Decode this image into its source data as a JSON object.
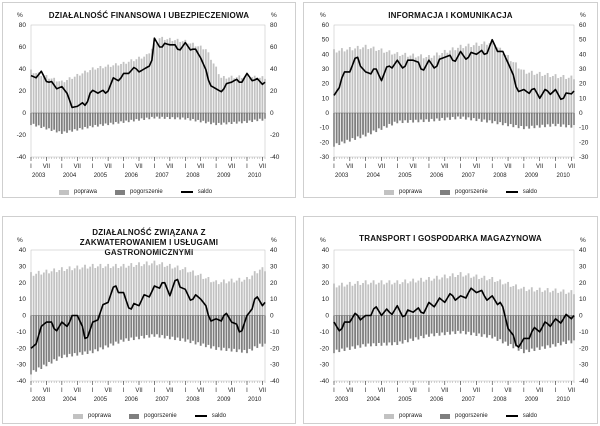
{
  "colors": {
    "poprawa": "#c2c2c2",
    "pogorszenie": "#7f7f7f",
    "saldo": "#000000",
    "grid": "#9a9a9a"
  },
  "legend": {
    "poprawa": "poprawa",
    "pogorszenie": "pogorszenie",
    "saldo": "saldo"
  },
  "axis_unit": "%",
  "x_tick_labels": [
    "I",
    "VII",
    "I",
    "VII",
    "I",
    "VII",
    "I",
    "VII",
    "I",
    "VII",
    "I",
    "VII",
    "I",
    "VII",
    "I",
    "VII"
  ],
  "years": [
    "2003",
    "2004",
    "2005",
    "2006",
    "2007",
    "2008",
    "2009",
    "2010"
  ],
  "chart_data": [
    {
      "type": "bar",
      "title": "DZIAŁALNOŚĆ FINANSOWA I UBEZPIECZENIOWA",
      "ylim": [
        -40,
        80
      ],
      "yticks": [
        -40,
        -20,
        0,
        20,
        40,
        60,
        80
      ],
      "poprawa": [
        {
          "x": "2003-01",
          "y": 38
        },
        {
          "x": "2004-01",
          "y": 28
        },
        {
          "x": "2005-01",
          "y": 40
        },
        {
          "x": "2006-01",
          "y": 45
        },
        {
          "x": "2006-10",
          "y": 52
        },
        {
          "x": "2007-03",
          "y": 68
        },
        {
          "x": "2008-01",
          "y": 65
        },
        {
          "x": "2008-09",
          "y": 58
        },
        {
          "x": "2009-03",
          "y": 32
        },
        {
          "x": "2010-01",
          "y": 33
        },
        {
          "x": "2010-06",
          "y": 32
        }
      ],
      "pogorszenie": [
        {
          "x": "2003-01",
          "y": -10
        },
        {
          "x": "2004-01",
          "y": -18
        },
        {
          "x": "2005-01",
          "y": -12
        },
        {
          "x": "2006-01",
          "y": -8
        },
        {
          "x": "2007-01",
          "y": -4
        },
        {
          "x": "2008-01",
          "y": -5
        },
        {
          "x": "2009-01",
          "y": -10
        },
        {
          "x": "2010-01",
          "y": -8
        },
        {
          "x": "2010-06",
          "y": -6
        }
      ],
      "saldo": [
        {
          "x": "2003-01",
          "y": 32
        },
        {
          "x": "2003-05",
          "y": 36
        },
        {
          "x": "2003-08",
          "y": 28
        },
        {
          "x": "2003-11",
          "y": 24
        },
        {
          "x": "2004-03",
          "y": 20
        },
        {
          "x": "2004-05",
          "y": 3
        },
        {
          "x": "2004-07",
          "y": 8
        },
        {
          "x": "2004-10",
          "y": 7
        },
        {
          "x": "2004-12",
          "y": 18
        },
        {
          "x": "2005-03",
          "y": 20
        },
        {
          "x": "2005-06",
          "y": 18
        },
        {
          "x": "2005-09",
          "y": 30
        },
        {
          "x": "2005-12",
          "y": 32
        },
        {
          "x": "2006-03",
          "y": 38
        },
        {
          "x": "2006-06",
          "y": 40
        },
        {
          "x": "2006-09",
          "y": 38
        },
        {
          "x": "2006-12",
          "y": 48
        },
        {
          "x": "2007-01",
          "y": 66
        },
        {
          "x": "2007-04",
          "y": 60
        },
        {
          "x": "2007-07",
          "y": 64
        },
        {
          "x": "2007-10",
          "y": 58
        },
        {
          "x": "2008-01",
          "y": 62
        },
        {
          "x": "2008-04",
          "y": 58
        },
        {
          "x": "2008-07",
          "y": 52
        },
        {
          "x": "2008-10",
          "y": 30
        },
        {
          "x": "2009-01",
          "y": 20
        },
        {
          "x": "2009-04",
          "y": 22
        },
        {
          "x": "2009-07",
          "y": 30
        },
        {
          "x": "2009-10",
          "y": 28
        },
        {
          "x": "2010-01",
          "y": 34
        },
        {
          "x": "2010-04",
          "y": 30
        },
        {
          "x": "2010-07",
          "y": 28
        }
      ]
    },
    {
      "type": "bar",
      "title": "INFORMACJA I KOMUNIKACJA",
      "ylim": [
        -30,
        60
      ],
      "yticks": [
        -30,
        -20,
        -10,
        0,
        10,
        20,
        30,
        40,
        50,
        60
      ],
      "poprawa": [
        {
          "x": "2003-01",
          "y": 42
        },
        {
          "x": "2004-01",
          "y": 45
        },
        {
          "x": "2005-01",
          "y": 40
        },
        {
          "x": "2006-01",
          "y": 38
        },
        {
          "x": "2007-01",
          "y": 45
        },
        {
          "x": "2008-01",
          "y": 48
        },
        {
          "x": "2009-01",
          "y": 28
        },
        {
          "x": "2010-01",
          "y": 25
        },
        {
          "x": "2010-06",
          "y": 24
        }
      ],
      "pogorszenie": [
        {
          "x": "2003-01",
          "y": -22
        },
        {
          "x": "2004-01",
          "y": -15
        },
        {
          "x": "2005-01",
          "y": -6
        },
        {
          "x": "2006-01",
          "y": -5
        },
        {
          "x": "2007-01",
          "y": -3
        },
        {
          "x": "2008-01",
          "y": -6
        },
        {
          "x": "2009-01",
          "y": -10
        },
        {
          "x": "2010-01",
          "y": -8
        },
        {
          "x": "2010-06",
          "y": -9
        }
      ],
      "saldo": [
        {
          "x": "2003-01",
          "y": 10
        },
        {
          "x": "2003-04",
          "y": 24
        },
        {
          "x": "2003-07",
          "y": 30
        },
        {
          "x": "2003-10",
          "y": 38
        },
        {
          "x": "2004-01",
          "y": 26
        },
        {
          "x": "2004-04",
          "y": 30
        },
        {
          "x": "2004-07",
          "y": 24
        },
        {
          "x": "2004-10",
          "y": 32
        },
        {
          "x": "2005-01",
          "y": 34
        },
        {
          "x": "2005-04",
          "y": 32
        },
        {
          "x": "2005-07",
          "y": 38
        },
        {
          "x": "2005-10",
          "y": 30
        },
        {
          "x": "2006-01",
          "y": 34
        },
        {
          "x": "2006-04",
          "y": 32
        },
        {
          "x": "2006-07",
          "y": 40
        },
        {
          "x": "2006-10",
          "y": 36
        },
        {
          "x": "2007-01",
          "y": 40
        },
        {
          "x": "2007-04",
          "y": 38
        },
        {
          "x": "2007-07",
          "y": 42
        },
        {
          "x": "2007-10",
          "y": 40
        },
        {
          "x": "2008-01",
          "y": 48
        },
        {
          "x": "2008-04",
          "y": 42
        },
        {
          "x": "2008-07",
          "y": 36
        },
        {
          "x": "2008-10",
          "y": 18
        },
        {
          "x": "2009-01",
          "y": 14
        },
        {
          "x": "2009-04",
          "y": 16
        },
        {
          "x": "2009-07",
          "y": 12
        },
        {
          "x": "2009-10",
          "y": 15
        },
        {
          "x": "2010-01",
          "y": 14
        },
        {
          "x": "2010-04",
          "y": 10
        },
        {
          "x": "2010-07",
          "y": 15
        }
      ]
    },
    {
      "type": "bar",
      "title": "DZIAŁALNOŚĆ ZWIĄZANA Z ZAKWATEROWANIEM I USŁUGAMI GASTRONOMICZNYMI",
      "ylim": [
        -40,
        40
      ],
      "yticks": [
        -40,
        -30,
        -20,
        -10,
        0,
        10,
        20,
        30,
        40
      ],
      "poprawa": [
        {
          "x": "2003-01",
          "y": 25
        },
        {
          "x": "2004-01",
          "y": 28
        },
        {
          "x": "2005-01",
          "y": 30
        },
        {
          "x": "2006-01",
          "y": 30
        },
        {
          "x": "2007-01",
          "y": 32
        },
        {
          "x": "2008-01",
          "y": 28
        },
        {
          "x": "2009-01",
          "y": 20
        },
        {
          "x": "2010-01",
          "y": 22
        },
        {
          "x": "2010-06",
          "y": 28
        }
      ],
      "pogorszenie": [
        {
          "x": "2003-01",
          "y": -35
        },
        {
          "x": "2004-01",
          "y": -25
        },
        {
          "x": "2005-01",
          "y": -22
        },
        {
          "x": "2006-01",
          "y": -15
        },
        {
          "x": "2007-01",
          "y": -12
        },
        {
          "x": "2008-01",
          "y": -15
        },
        {
          "x": "2009-01",
          "y": -20
        },
        {
          "x": "2010-01",
          "y": -22
        },
        {
          "x": "2010-06",
          "y": -18
        }
      ],
      "saldo": [
        {
          "x": "2003-01",
          "y": -22
        },
        {
          "x": "2003-04",
          "y": -12
        },
        {
          "x": "2003-07",
          "y": -2
        },
        {
          "x": "2003-10",
          "y": -8
        },
        {
          "x": "2004-01",
          "y": -6
        },
        {
          "x": "2004-04",
          "y": -4
        },
        {
          "x": "2004-07",
          "y": 2
        },
        {
          "x": "2004-10",
          "y": -14
        },
        {
          "x": "2005-01",
          "y": -6
        },
        {
          "x": "2005-04",
          "y": 2
        },
        {
          "x": "2005-07",
          "y": 10
        },
        {
          "x": "2005-10",
          "y": 18
        },
        {
          "x": "2006-01",
          "y": 12
        },
        {
          "x": "2006-04",
          "y": 4
        },
        {
          "x": "2006-07",
          "y": 8
        },
        {
          "x": "2006-10",
          "y": 12
        },
        {
          "x": "2007-01",
          "y": 16
        },
        {
          "x": "2007-04",
          "y": 20
        },
        {
          "x": "2007-07",
          "y": 14
        },
        {
          "x": "2007-10",
          "y": 22
        },
        {
          "x": "2008-01",
          "y": 14
        },
        {
          "x": "2008-04",
          "y": 10
        },
        {
          "x": "2008-07",
          "y": 12
        },
        {
          "x": "2008-10",
          "y": 0
        },
        {
          "x": "2009-01",
          "y": -4
        },
        {
          "x": "2009-04",
          "y": 0
        },
        {
          "x": "2009-07",
          "y": -2
        },
        {
          "x": "2009-10",
          "y": -10
        },
        {
          "x": "2010-01",
          "y": -2
        },
        {
          "x": "2010-04",
          "y": 10
        },
        {
          "x": "2010-07",
          "y": 8
        }
      ]
    },
    {
      "type": "bar",
      "title": "TRANSPORT I GOSPODARKA MAGAZYNOWA",
      "ylim": [
        -40,
        40
      ],
      "yticks": [
        -40,
        -30,
        -20,
        -10,
        0,
        10,
        20,
        30,
        40
      ],
      "poprawa": [
        {
          "x": "2003-01",
          "y": 18
        },
        {
          "x": "2004-01",
          "y": 20
        },
        {
          "x": "2005-01",
          "y": 20
        },
        {
          "x": "2006-01",
          "y": 22
        },
        {
          "x": "2007-01",
          "y": 25
        },
        {
          "x": "2008-01",
          "y": 22
        },
        {
          "x": "2009-01",
          "y": 16
        },
        {
          "x": "2010-01",
          "y": 15
        },
        {
          "x": "2010-06",
          "y": 14
        }
      ],
      "pogorszenie": [
        {
          "x": "2003-01",
          "y": -22
        },
        {
          "x": "2004-01",
          "y": -18
        },
        {
          "x": "2005-01",
          "y": -17
        },
        {
          "x": "2006-01",
          "y": -12
        },
        {
          "x": "2007-01",
          "y": -10
        },
        {
          "x": "2008-01",
          "y": -13
        },
        {
          "x": "2009-01",
          "y": -22
        },
        {
          "x": "2010-01",
          "y": -18
        },
        {
          "x": "2010-06",
          "y": -16
        }
      ],
      "saldo": [
        {
          "x": "2003-01",
          "y": -6
        },
        {
          "x": "2003-04",
          "y": -8
        },
        {
          "x": "2003-07",
          "y": -2
        },
        {
          "x": "2003-10",
          "y": 0
        },
        {
          "x": "2004-01",
          "y": -2
        },
        {
          "x": "2004-04",
          "y": 4
        },
        {
          "x": "2004-07",
          "y": 2
        },
        {
          "x": "2004-10",
          "y": 2
        },
        {
          "x": "2005-01",
          "y": 4
        },
        {
          "x": "2005-04",
          "y": 0
        },
        {
          "x": "2005-07",
          "y": 4
        },
        {
          "x": "2005-10",
          "y": 2
        },
        {
          "x": "2006-01",
          "y": 6
        },
        {
          "x": "2006-04",
          "y": 8
        },
        {
          "x": "2006-07",
          "y": 10
        },
        {
          "x": "2006-10",
          "y": 12
        },
        {
          "x": "2007-01",
          "y": 10
        },
        {
          "x": "2007-04",
          "y": 14
        },
        {
          "x": "2007-07",
          "y": 16
        },
        {
          "x": "2007-10",
          "y": 12
        },
        {
          "x": "2008-01",
          "y": 10
        },
        {
          "x": "2008-04",
          "y": 8
        },
        {
          "x": "2008-07",
          "y": -6
        },
        {
          "x": "2008-10",
          "y": -18
        },
        {
          "x": "2009-01",
          "y": -16
        },
        {
          "x": "2009-04",
          "y": -10
        },
        {
          "x": "2009-07",
          "y": -8
        },
        {
          "x": "2009-10",
          "y": -5
        },
        {
          "x": "2010-01",
          "y": -4
        },
        {
          "x": "2010-04",
          "y": -2
        },
        {
          "x": "2010-07",
          "y": 0
        }
      ]
    }
  ]
}
